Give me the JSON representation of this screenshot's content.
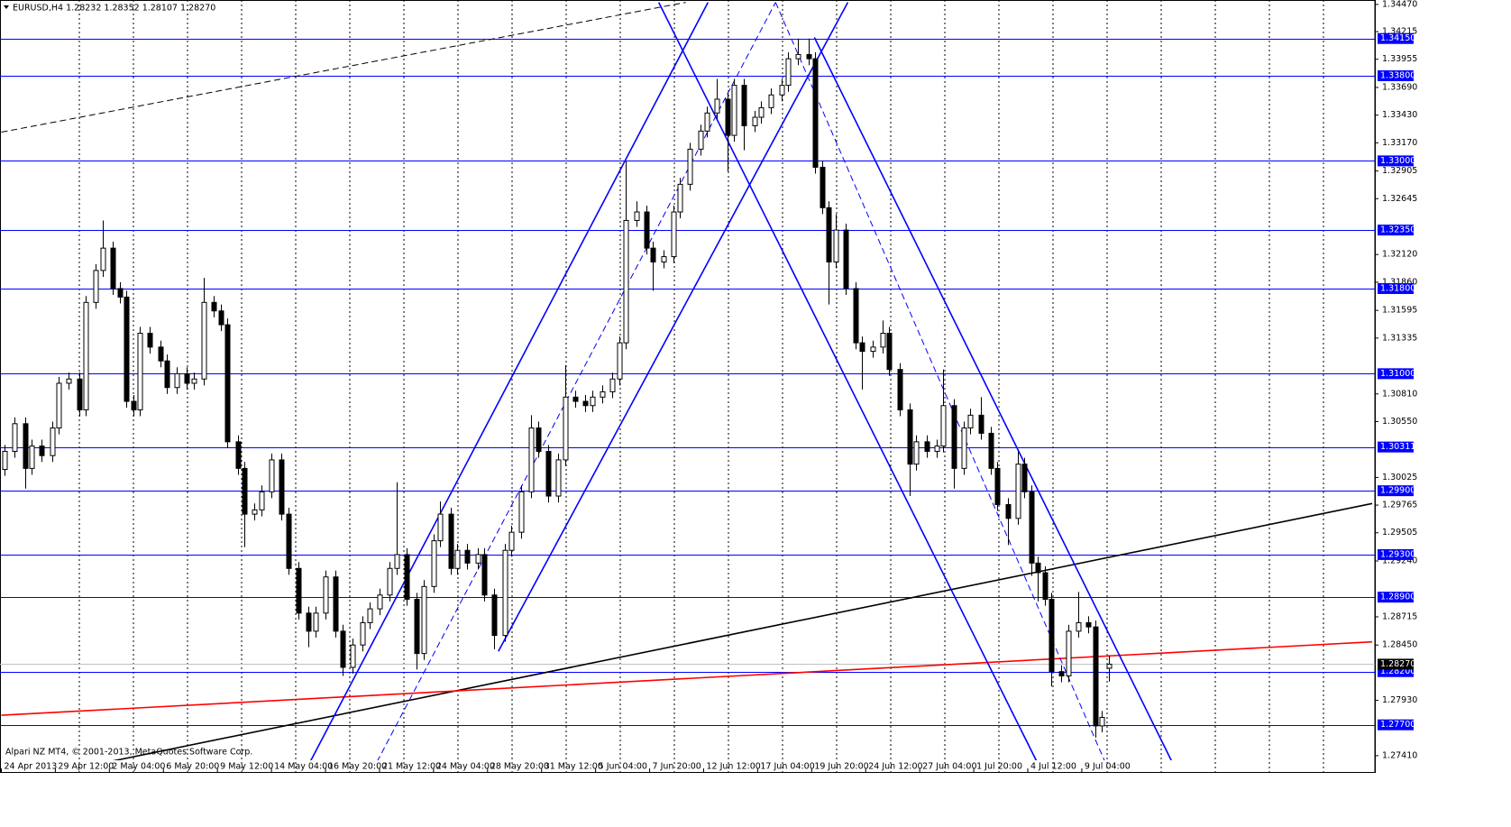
{
  "chart_data": {
    "type": "candlestick",
    "title": "EURUSD,H4  1.28232 1.28352 1.28107 1.28270",
    "footer": "Alpari NZ MT4, © 2001-2013, MetaQuotes Software Corp.",
    "xlim": [
      0,
      406
    ],
    "ylim": [
      1.27367,
      1.34512
    ],
    "xticks": [
      {
        "value": 0,
        "label": "24 Apr 2013"
      },
      {
        "value": 16,
        "label": "29 Apr 12:00"
      },
      {
        "value": 32,
        "label": "2 May 04:00"
      },
      {
        "value": 48,
        "label": "6 May 20:00"
      },
      {
        "value": 64,
        "label": "9 May 12:00"
      },
      {
        "value": 80,
        "label": "14 May 04:00"
      },
      {
        "value": 96,
        "label": "16 May 20:00"
      },
      {
        "value": 112,
        "label": "21 May 12:00"
      },
      {
        "value": 128,
        "label": "24 May 04:00"
      },
      {
        "value": 144,
        "label": "28 May 20:00"
      },
      {
        "value": 160,
        "label": "31 May 12:00"
      },
      {
        "value": 176,
        "label": "5 Jun 04:00"
      },
      {
        "value": 192,
        "label": "7 Jun 20:00"
      },
      {
        "value": 208,
        "label": "12 Jun 12:00"
      },
      {
        "value": 224,
        "label": "17 Jun 04:00"
      },
      {
        "value": 240,
        "label": "19 Jun 20:00"
      },
      {
        "value": 256,
        "label": "24 Jun 12:00"
      },
      {
        "value": 272,
        "label": "27 Jun 04:00"
      },
      {
        "value": 288,
        "label": "1 Jul 20:00"
      },
      {
        "value": 304,
        "label": "4 Jul 12:00"
      },
      {
        "value": 320,
        "label": "9 Jul 04:00"
      }
    ],
    "yticks": [
      {
        "value": 1.3447,
        "label": "1.34470"
      },
      1.34215,
      1.33955,
      {
        "value": 1.3369,
        "label": "1.33690"
      },
      {
        "value": 1.3343,
        "label": "1.33430"
      },
      {
        "value": 1.3317,
        "label": "1.33170"
      },
      1.32905,
      1.32645,
      {
        "value": 1.3212,
        "label": "1.32120"
      },
      {
        "value": 1.3186,
        "label": "1.31860"
      },
      1.31595,
      1.31335,
      {
        "value": 1.3081,
        "label": "1.30810"
      },
      {
        "value": 1.3055,
        "label": "1.30550"
      },
      1.30025,
      1.29765,
      1.29505,
      {
        "value": 1.2924,
        "label": "1.29240"
      },
      1.28715,
      {
        "value": 1.2845,
        "label": "1.28450"
      },
      {
        "value": 1.2793,
        "label": "1.27930"
      },
      {
        "value": 1.2741,
        "label": "1.27410"
      }
    ],
    "levels": [
      {
        "value": 1.3415,
        "label": "1.34150"
      },
      {
        "value": 1.338,
        "label": "1.33800"
      },
      {
        "value": 1.33,
        "label": "1.33000"
      },
      {
        "value": 1.3235,
        "label": "1.32350"
      },
      {
        "value": 1.318,
        "label": "1.31800"
      },
      {
        "value": 1.31,
        "label": "1.31000"
      },
      1.30311,
      {
        "value": 1.299,
        "label": "1.29900"
      },
      {
        "value": 1.293,
        "label": "1.29300"
      },
      {
        "value": 1.289,
        "label": "1.28900"
      },
      {
        "value": 1.282,
        "label": "1.28200"
      },
      {
        "value": 1.277,
        "label": "1.27700"
      }
    ],
    "level_color": "#0000ff",
    "current_price": {
      "value": 1.2827,
      "label": "1.28270"
    },
    "trend_lines": [
      {
        "x": [
          0,
          202.7
        ],
        "y": [
          1.3327,
          1.3449
        ],
        "color": "#000000",
        "dashed": true
      },
      {
        "x": [
          16,
          406
        ],
        "y": [
          1.2725,
          1.2978
        ],
        "color": "#000000",
        "dashed": false
      },
      {
        "x": [
          0,
          406
        ],
        "y": [
          1.2779,
          1.2848
        ],
        "color": "#ff0000",
        "dashed": false
      },
      {
        "x": [
          90.1,
          209.3
        ],
        "y": [
          1.2727,
          1.3449
        ],
        "color": "#0000ff",
        "dashed": false
      },
      {
        "x": [
          147.2,
          250.7
        ],
        "y": [
          1.2839,
          1.3449
        ],
        "color": "#0000ff",
        "dashed": false
      },
      {
        "x": [
          109.9,
          229.3
        ],
        "y": [
          1.2727,
          1.3449
        ],
        "color": "#0000ff",
        "dashed": true
      },
      {
        "x": [
          194.7,
          308
        ],
        "y": [
          1.3449,
          1.2727
        ],
        "color": "#0000ff",
        "dashed": false
      },
      {
        "x": [
          240.8,
          348
        ],
        "y": [
          1.3416,
          1.2727
        ],
        "color": "#0000ff",
        "dashed": false
      },
      {
        "x": [
          229.3,
          328
        ],
        "y": [
          1.3449,
          1.2727
        ],
        "color": "#0000ff",
        "dashed": true
      }
    ],
    "candles": {
      "x": [
        1,
        4,
        7,
        9,
        12,
        15,
        17,
        20,
        23,
        25,
        28,
        30,
        33,
        35,
        37,
        39,
        41,
        44,
        47,
        49,
        52,
        55,
        57,
        60,
        63,
        65,
        67,
        70,
        72,
        75,
        77,
        80,
        83,
        85,
        88,
        91,
        93,
        96,
        99,
        101,
        104,
        107,
        109,
        112,
        115,
        117,
        120,
        123,
        125,
        128,
        130,
        133,
        135,
        138,
        141,
        143,
        146,
        149,
        151,
        154,
        157,
        159,
        162,
        165,
        167,
        170,
        173,
        175,
        178,
        181,
        183,
        185,
        188,
        191,
        193,
        196,
        199,
        201,
        204,
        207,
        209,
        212,
        215,
        217,
        220,
        223,
        225,
        228,
        231,
        233,
        236,
        239,
        241,
        243,
        245,
        247,
        250,
        253,
        255,
        258,
        261,
        263,
        266,
        269,
        271,
        274,
        277,
        279,
        282,
        285,
        287,
        290,
        293,
        295,
        298,
        301,
        303,
        305,
        307,
        309,
        311,
        314,
        316,
        319,
        322,
        324,
        326,
        328
      ],
      "open": [
        1.301,
        1.3027,
        1.3053,
        1.3011,
        1.3032,
        1.3023,
        1.3049,
        1.3091,
        1.3095,
        1.3066,
        1.3167,
        1.3197,
        1.3218,
        1.318,
        1.3172,
        1.3074,
        1.3066,
        1.3138,
        1.3125,
        1.3112,
        1.3087,
        1.31,
        1.3091,
        1.3095,
        1.3167,
        1.3159,
        1.3146,
        1.3036,
        1.3011,
        1.2968,
        1.2972,
        1.2989,
        1.3019,
        1.2968,
        1.2917,
        1.2875,
        1.2858,
        1.2875,
        1.2909,
        1.2858,
        1.2824,
        1.2845,
        1.2866,
        1.2879,
        1.2892,
        1.2917,
        1.293,
        1.2888,
        1.2837,
        1.29,
        1.2943,
        1.2968,
        1.2917,
        1.2934,
        1.2922,
        1.293,
        1.2892,
        1.2854,
        1.2934,
        1.2951,
        1.2989,
        1.3049,
        1.3027,
        1.2985,
        1.3019,
        1.3078,
        1.3074,
        1.307,
        1.3078,
        1.3083,
        1.3095,
        1.3129,
        1.3244,
        1.3252,
        1.3218,
        1.3205,
        1.321,
        1.3252,
        1.3278,
        1.3311,
        1.3328,
        1.3345,
        1.3358,
        1.3324,
        1.3371,
        1.3333,
        1.3341,
        1.335,
        1.3362,
        1.3371,
        1.3396,
        1.34,
        1.3396,
        1.3294,
        1.3256,
        1.3205,
        1.3235,
        1.318,
        1.3129,
        1.3121,
        1.3125,
        1.3138,
        1.3104,
        1.3066,
        1.3015,
        1.3036,
        1.3027,
        1.3032,
        1.307,
        1.3011,
        1.3049,
        1.3061,
        1.3044,
        1.3011,
        1.2977,
        1.2964,
        1.3015,
        1.2989,
        1.2922,
        1.2913,
        1.2888,
        1.282,
        1.2816,
        1.2858,
        1.2866,
        1.2862,
        1.2769,
        1.28232
      ],
      "high": [
        1.3033,
        1.3059,
        1.3059,
        1.3038,
        1.3038,
        1.3055,
        1.3097,
        1.3101,
        1.3101,
        1.3173,
        1.3203,
        1.3244,
        1.3224,
        1.3186,
        1.3178,
        1.308,
        1.3144,
        1.3144,
        1.3131,
        1.3118,
        1.3106,
        1.3106,
        1.3101,
        1.319,
        1.3173,
        1.3165,
        1.3152,
        1.3042,
        1.3017,
        1.2978,
        1.2995,
        1.3025,
        1.3025,
        1.2974,
        1.2923,
        1.2881,
        1.2881,
        1.2915,
        1.2915,
        1.2864,
        1.2851,
        1.2872,
        1.2885,
        1.2898,
        1.2923,
        1.2998,
        1.2936,
        1.2894,
        1.2906,
        1.2949,
        1.298,
        1.2974,
        1.294,
        1.294,
        1.2936,
        1.2936,
        1.2898,
        1.294,
        1.2957,
        1.2995,
        1.3061,
        1.3055,
        1.3033,
        1.3025,
        1.3108,
        1.3084,
        1.308,
        1.3084,
        1.3089,
        1.3101,
        1.3135,
        1.33,
        1.3262,
        1.3258,
        1.3224,
        1.3216,
        1.3258,
        1.3284,
        1.3317,
        1.3334,
        1.3351,
        1.3377,
        1.3364,
        1.3377,
        1.3377,
        1.3347,
        1.3356,
        1.3368,
        1.3377,
        1.3402,
        1.3415,
        1.3415,
        1.3402,
        1.33,
        1.3262,
        1.325,
        1.3241,
        1.3186,
        1.3135,
        1.3131,
        1.315,
        1.3144,
        1.311,
        1.3072,
        1.3042,
        1.3042,
        1.3038,
        1.3104,
        1.3076,
        1.3055,
        1.3067,
        1.3078,
        1.305,
        1.3017,
        1.2983,
        1.3027,
        1.3021,
        1.2995,
        1.2928,
        1.2919,
        1.2894,
        1.2826,
        1.2864,
        1.2895,
        1.2872,
        1.2868,
        1.2783,
        1.28352
      ],
      "low": [
        1.3004,
        1.3021,
        1.2992,
        1.3005,
        1.3017,
        1.3017,
        1.3043,
        1.3085,
        1.306,
        1.306,
        1.3161,
        1.3191,
        1.3174,
        1.3166,
        1.3068,
        1.306,
        1.306,
        1.3119,
        1.3106,
        1.3081,
        1.3081,
        1.3085,
        1.3085,
        1.3089,
        1.3153,
        1.314,
        1.303,
        1.3005,
        1.2937,
        1.2962,
        1.2966,
        1.2983,
        1.2962,
        1.2911,
        1.2869,
        1.2843,
        1.2852,
        1.2869,
        1.2852,
        1.2816,
        1.2818,
        1.2839,
        1.286,
        1.2873,
        1.2886,
        1.2911,
        1.2882,
        1.2822,
        1.2831,
        1.2894,
        1.2937,
        1.2911,
        1.2911,
        1.2916,
        1.2916,
        1.2886,
        1.2841,
        1.2848,
        1.2928,
        1.2945,
        1.2983,
        1.3021,
        1.2979,
        1.2979,
        1.3013,
        1.3068,
        1.3064,
        1.3064,
        1.3072,
        1.3077,
        1.3089,
        1.3123,
        1.3238,
        1.3212,
        1.3178,
        1.3199,
        1.3204,
        1.3246,
        1.3272,
        1.3305,
        1.3322,
        1.3339,
        1.329,
        1.3318,
        1.331,
        1.3327,
        1.3335,
        1.3344,
        1.3356,
        1.3365,
        1.339,
        1.339,
        1.3288,
        1.325,
        1.3165,
        1.3199,
        1.3174,
        1.3123,
        1.3085,
        1.3115,
        1.3119,
        1.3098,
        1.306,
        1.2985,
        1.3009,
        1.3021,
        1.3021,
        1.3026,
        1.2992,
        1.3005,
        1.3043,
        1.3038,
        1.3005,
        1.2971,
        1.2939,
        1.2958,
        1.2983,
        1.291,
        1.2886,
        1.2882,
        1.2806,
        1.281,
        1.281,
        1.2852,
        1.2856,
        1.2758,
        1.2763,
        1.28107
      ],
      "close": [
        1.3027,
        1.3053,
        1.3011,
        1.3032,
        1.3023,
        1.3049,
        1.3091,
        1.3095,
        1.3066,
        1.3167,
        1.3197,
        1.3218,
        1.318,
        1.3172,
        1.3074,
        1.3066,
        1.3138,
        1.3125,
        1.3112,
        1.3087,
        1.31,
        1.3091,
        1.3095,
        1.3167,
        1.3159,
        1.3146,
        1.3036,
        1.3011,
        1.2968,
        1.2972,
        1.2989,
        1.3019,
        1.2968,
        1.2917,
        1.2875,
        1.2858,
        1.2875,
        1.2909,
        1.2858,
        1.2824,
        1.2845,
        1.2866,
        1.2879,
        1.2892,
        1.2917,
        1.293,
        1.2888,
        1.2837,
        1.29,
        1.2943,
        1.2968,
        1.2917,
        1.2934,
        1.2922,
        1.293,
        1.2892,
        1.2854,
        1.2934,
        1.2951,
        1.2989,
        1.3049,
        1.3027,
        1.2985,
        1.3019,
        1.3078,
        1.3074,
        1.307,
        1.3078,
        1.3083,
        1.3095,
        1.3129,
        1.3244,
        1.3252,
        1.3218,
        1.3205,
        1.321,
        1.3252,
        1.3278,
        1.3311,
        1.3328,
        1.3345,
        1.3358,
        1.3324,
        1.3371,
        1.3333,
        1.3341,
        1.335,
        1.3362,
        1.3371,
        1.3396,
        1.34,
        1.3396,
        1.3294,
        1.3256,
        1.3205,
        1.3235,
        1.318,
        1.3129,
        1.3121,
        1.3125,
        1.3138,
        1.3104,
        1.3066,
        1.3015,
        1.3036,
        1.3027,
        1.3032,
        1.307,
        1.3011,
        1.3049,
        1.3061,
        1.3044,
        1.3011,
        1.2977,
        1.2964,
        1.3015,
        1.2989,
        1.2922,
        1.2913,
        1.2888,
        1.282,
        1.2816,
        1.2858,
        1.2866,
        1.2862,
        1.2769,
        1.2777,
        1.2827
      ]
    }
  }
}
